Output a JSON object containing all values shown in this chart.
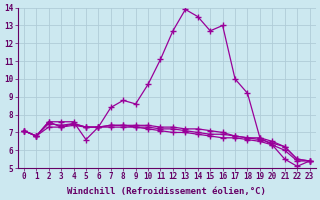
{
  "xlabel": "Windchill (Refroidissement éolien,°C)",
  "x": [
    0,
    1,
    2,
    3,
    4,
    5,
    6,
    7,
    8,
    9,
    10,
    11,
    12,
    13,
    14,
    15,
    16,
    17,
    18,
    19,
    20,
    21,
    22,
    23
  ],
  "line1": [
    7.1,
    6.8,
    7.6,
    7.6,
    7.6,
    6.6,
    7.3,
    8.4,
    8.8,
    8.6,
    9.7,
    11.1,
    12.7,
    13.9,
    13.5,
    12.7,
    13.0,
    10.0,
    9.2,
    6.7,
    6.3,
    5.5,
    5.1,
    5.4
  ],
  "line2": [
    7.1,
    6.8,
    7.6,
    7.3,
    7.5,
    7.3,
    7.3,
    7.4,
    7.4,
    7.4,
    7.4,
    7.3,
    7.3,
    7.2,
    7.2,
    7.1,
    7.0,
    6.8,
    6.7,
    6.6,
    6.4,
    6.2,
    5.5,
    5.4
  ],
  "line3": [
    7.1,
    6.8,
    7.3,
    7.3,
    7.4,
    7.3,
    7.3,
    7.3,
    7.3,
    7.3,
    7.2,
    7.1,
    7.0,
    7.0,
    6.9,
    6.8,
    6.7,
    6.7,
    6.6,
    6.5,
    6.3,
    6.0,
    5.4,
    5.4
  ],
  "line4": [
    7.1,
    6.8,
    7.5,
    7.4,
    7.5,
    7.3,
    7.3,
    7.4,
    7.4,
    7.3,
    7.3,
    7.2,
    7.2,
    7.1,
    7.0,
    6.9,
    6.9,
    6.8,
    6.7,
    6.7,
    6.5,
    6.2,
    5.5,
    5.4
  ],
  "line_color": "#990099",
  "bg_color": "#cce8f0",
  "grid_color": "#b0ccd8",
  "ylim": [
    5,
    14
  ],
  "xlim": [
    -0.5,
    23.5
  ],
  "yticks": [
    5,
    6,
    7,
    8,
    9,
    10,
    11,
    12,
    13,
    14
  ],
  "xticks": [
    0,
    1,
    2,
    3,
    4,
    5,
    6,
    7,
    8,
    9,
    10,
    11,
    12,
    13,
    14,
    15,
    16,
    17,
    18,
    19,
    20,
    21,
    22,
    23
  ],
  "marker": "+",
  "markersize": 4,
  "linewidth": 0.9,
  "tick_fontsize": 5.5,
  "xlabel_fontsize": 6.5,
  "ylabel_fontsize": 6.5
}
